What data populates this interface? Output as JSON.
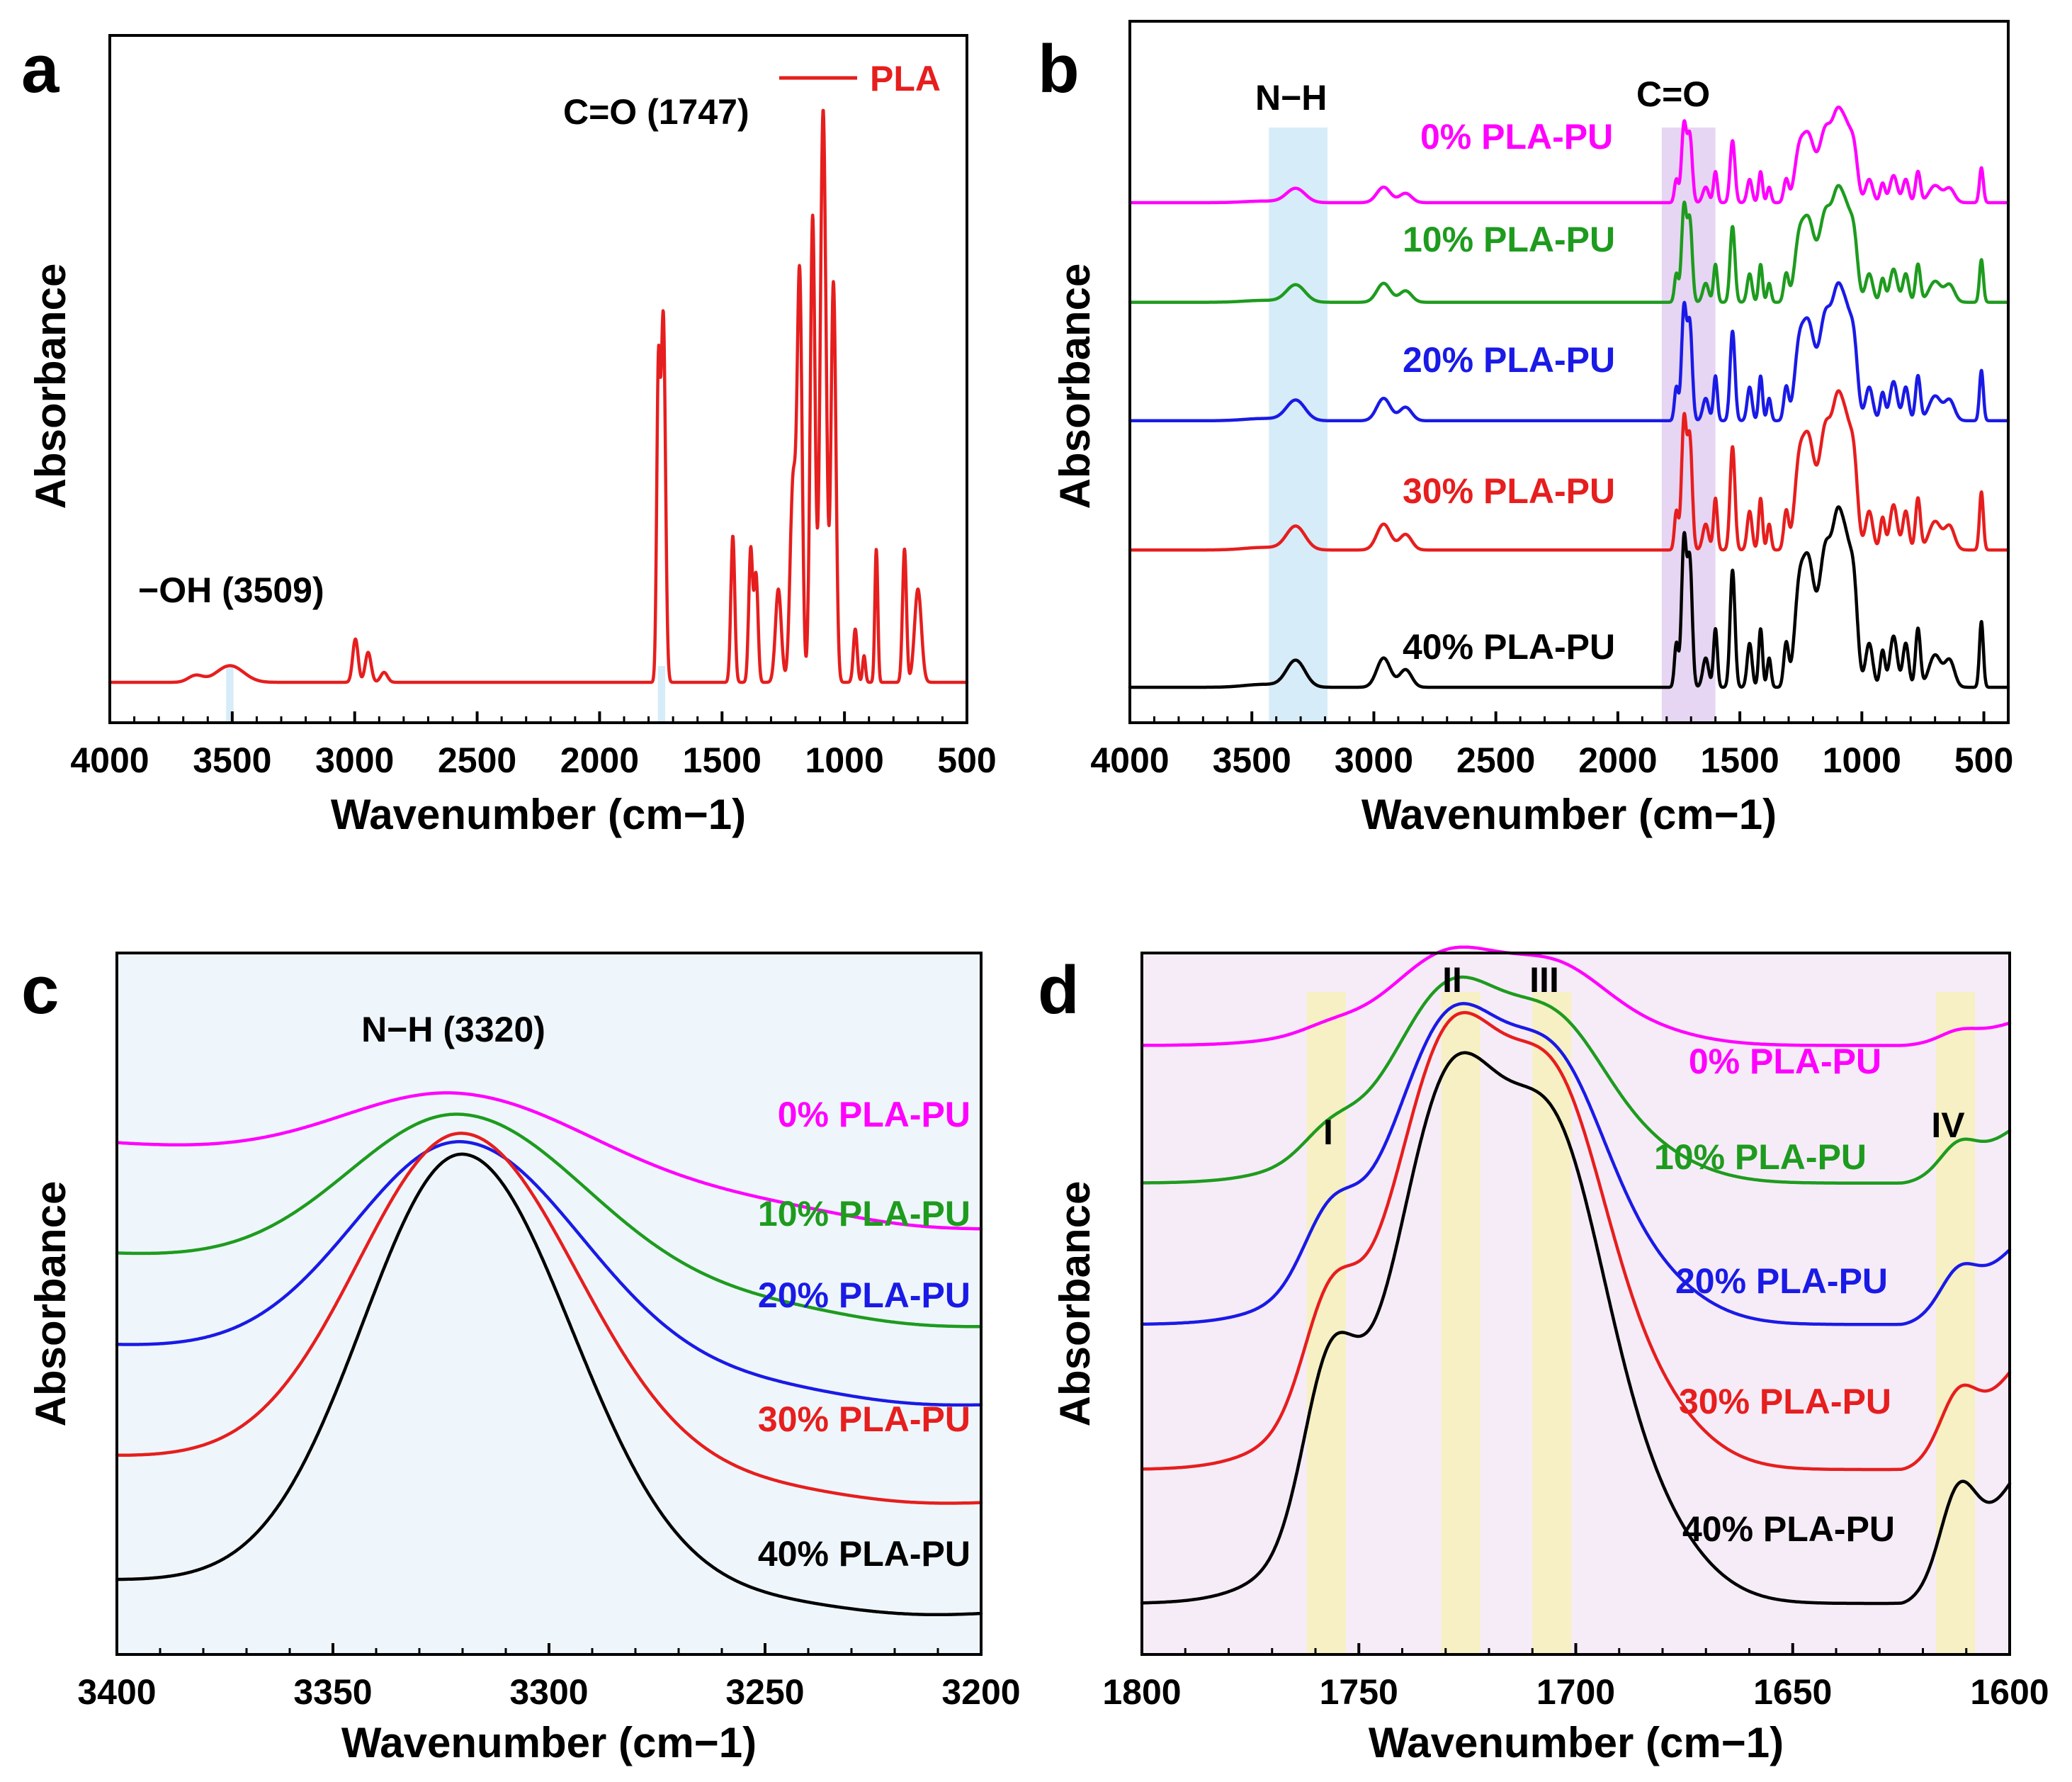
{
  "colors": {
    "0%": "#ff00ff",
    "10%": "#1e9b1e",
    "20%": "#1a1ae6",
    "30%": "#e61e1e",
    "40%": "#000000",
    "PLA": "#e61e1e",
    "nh_band": "#d6ecf8",
    "co_band": "#e6d6f3",
    "yellow_band": "#f6f0c4",
    "panel_c_bg": "#eef6fb",
    "panel_d_bg": "#f6ecf8"
  },
  "chart_data": [
    {
      "panel": "a",
      "type": "line",
      "xlabel": "Wavenumber (cm−1)",
      "ylabel": "Absorbance",
      "xlim": [
        4000,
        500
      ],
      "xticks": [
        4000,
        3500,
        3000,
        2500,
        2000,
        1500,
        1000,
        500
      ],
      "tick_labels": [
        "4000",
        "3500",
        "3000",
        "2500",
        "2000",
        "1500",
        "1000",
        "500"
      ],
      "legend": {
        "entry": "PLA",
        "position": "top-right"
      },
      "annotations": [
        {
          "text": "−OH (3509)",
          "x": 3509
        },
        {
          "text": "C=O (1747)",
          "x": 1747
        }
      ],
      "bands": [
        {
          "from": 3525,
          "to": 3495,
          "color": "nh_band"
        },
        {
          "from": 1762,
          "to": 1732,
          "color": "nh_band"
        }
      ],
      "series": [
        {
          "name": "PLA",
          "color_key": "PLA",
          "baseline": 0.05,
          "peaks": [
            [
              3509,
              0.025,
              55
            ],
            [
              3650,
              0.01,
              30
            ],
            [
              2997,
              0.065,
              11
            ],
            [
              2945,
              0.045,
              12
            ],
            [
              2880,
              0.015,
              14
            ],
            [
              1760,
              0.45,
              7
            ],
            [
              1740,
              0.55,
              9
            ],
            [
              1456,
              0.22,
              8
            ],
            [
              1383,
              0.2,
              8
            ],
            [
              1361,
              0.16,
              8
            ],
            [
              1270,
              0.14,
              12
            ],
            [
              1210,
              0.3,
              12
            ],
            [
              1183,
              0.6,
              10
            ],
            [
              1130,
              0.7,
              10
            ],
            [
              1087,
              0.86,
              12
            ],
            [
              1045,
              0.6,
              10
            ],
            [
              956,
              0.08,
              8
            ],
            [
              920,
              0.04,
              6
            ],
            [
              870,
              0.2,
              6
            ],
            [
              755,
              0.2,
              8
            ],
            [
              700,
              0.14,
              14
            ]
          ]
        }
      ]
    },
    {
      "panel": "b",
      "type": "line",
      "xlabel": "Wavenumber (cm−1)",
      "ylabel": "Absorbance",
      "xlim": [
        4000,
        400
      ],
      "xticks": [
        4000,
        3500,
        3000,
        2500,
        2000,
        1500,
        1000,
        500
      ],
      "tick_labels": [
        "4000",
        "3500",
        "3000",
        "2500",
        "2000",
        "1500",
        "1000",
        "500"
      ],
      "annotations": [
        {
          "text": "N−H",
          "x": 3320
        },
        {
          "text": "C=O",
          "x": 1730
        }
      ],
      "bands": [
        {
          "from": 3430,
          "to": 3190,
          "color": "nh_band"
        },
        {
          "from": 1820,
          "to": 1600,
          "color": "co_band"
        }
      ],
      "series": [
        {
          "name": "0% PLA-PU",
          "color_key": "0%",
          "offset": 0.9,
          "scale": 0.045
        },
        {
          "name": "10% PLA-PU",
          "color_key": "10%",
          "offset": 0.715,
          "scale": 0.055
        },
        {
          "name": "20% PLA-PU",
          "color_key": "20%",
          "offset": 0.495,
          "scale": 0.065
        },
        {
          "name": "30% PLA-PU",
          "color_key": "30%",
          "offset": 0.255,
          "scale": 0.075
        },
        {
          "name": "40% PLA-PU",
          "color_key": "40%",
          "offset": 0.0,
          "scale": 0.085
        }
      ],
      "peaks": [
        [
          3320,
          0.18,
          38
        ],
        [
          3450,
          0.02,
          80
        ],
        [
          2960,
          0.2,
          28
        ],
        [
          2870,
          0.12,
          25
        ],
        [
          1760,
          0.3,
          8
        ],
        [
          1729,
          1.0,
          10
        ],
        [
          1705,
          0.85,
          10
        ],
        [
          1640,
          0.2,
          12
        ],
        [
          1600,
          0.4,
          8
        ],
        [
          1530,
          0.8,
          10
        ],
        [
          1460,
          0.3,
          10
        ],
        [
          1415,
          0.4,
          8
        ],
        [
          1380,
          0.2,
          8
        ],
        [
          1310,
          0.3,
          10
        ],
        [
          1260,
          0.5,
          18
        ],
        [
          1220,
          0.85,
          25
        ],
        [
          1150,
          0.9,
          25
        ],
        [
          1100,
          0.95,
          22
        ],
        [
          1060,
          0.8,
          22
        ],
        [
          1030,
          0.45,
          15
        ],
        [
          970,
          0.3,
          15
        ],
        [
          915,
          0.25,
          10
        ],
        [
          870,
          0.35,
          15
        ],
        [
          820,
          0.3,
          12
        ],
        [
          770,
          0.4,
          10
        ],
        [
          700,
          0.22,
          25
        ],
        [
          640,
          0.18,
          20
        ],
        [
          510,
          0.45,
          8
        ]
      ]
    },
    {
      "panel": "c",
      "type": "line",
      "xlabel": "Wavenumber (cm−1)",
      "ylabel": "Absorbance",
      "xlim": [
        3400,
        3200
      ],
      "xticks": [
        3400,
        3350,
        3300,
        3250,
        3200
      ],
      "tick_labels": [
        "3400",
        "3350",
        "3300",
        "3250",
        "3200"
      ],
      "annotations": [
        {
          "text": "N−H (3320)",
          "x": 3320
        }
      ],
      "series": [
        {
          "name": "0% PLA-PU",
          "color_key": "0%",
          "base": 0.62,
          "amp": 0.125,
          "sigma": 26,
          "slope": 0.0006
        },
        {
          "name": "10% PLA-PU",
          "color_key": "10%",
          "base": 0.47,
          "amp": 0.255,
          "sigma": 25,
          "slope": 0.0005
        },
        {
          "name": "20% PLA-PU",
          "color_key": "20%",
          "base": 0.35,
          "amp": 0.345,
          "sigma": 24,
          "slope": 0.0004
        },
        {
          "name": "30% PLA-PU",
          "color_key": "30%",
          "base": 0.2,
          "amp": 0.52,
          "sigma": 23,
          "slope": 0.0003
        },
        {
          "name": "40% PLA-PU",
          "color_key": "40%",
          "base": 0.03,
          "amp": 0.67,
          "sigma": 22,
          "slope": 0.0002
        }
      ]
    },
    {
      "panel": "d",
      "type": "line",
      "xlabel": "Wavenumber (cm−1)",
      "ylabel": "Absorbance",
      "xlim": [
        1800,
        1600
      ],
      "xticks": [
        1800,
        1750,
        1700,
        1650,
        1600
      ],
      "tick_labels": [
        "1800",
        "1750",
        "1700",
        "1650",
        "1600"
      ],
      "annotations": [
        {
          "text": "I",
          "x": 1757
        },
        {
          "text": "II",
          "x": 1727
        },
        {
          "text": "III",
          "x": 1706
        },
        {
          "text": "IV",
          "x": 1612
        }
      ],
      "bands": [
        {
          "from": 1762,
          "to": 1753,
          "color": "yellow_band"
        },
        {
          "from": 1731,
          "to": 1722,
          "color": "yellow_band"
        },
        {
          "from": 1710,
          "to": 1701,
          "color": "yellow_band"
        },
        {
          "from": 1617,
          "to": 1608,
          "color": "yellow_band"
        }
      ],
      "series": [
        {
          "name": "0% PLA-PU",
          "color_key": "0%",
          "base": 0.79,
          "p1": 0.008,
          "p2": 0.095,
          "p3": 0.08,
          "p4": 0.01,
          "tail": 0.03
        },
        {
          "name": "10% PLA-PU",
          "color_key": "10%",
          "base": 0.605,
          "p1": 0.03,
          "p2": 0.2,
          "p3": 0.16,
          "p4": 0.03,
          "tail": 0.07
        },
        {
          "name": "20% PLA-PU",
          "color_key": "20%",
          "base": 0.415,
          "p1": 0.08,
          "p2": 0.31,
          "p3": 0.26,
          "p4": 0.04,
          "tail": 0.1
        },
        {
          "name": "30% PLA-PU",
          "color_key": "30%",
          "base": 0.22,
          "p1": 0.13,
          "p2": 0.44,
          "p3": 0.38,
          "p4": 0.06,
          "tail": 0.13
        },
        {
          "name": "40% PLA-PU",
          "color_key": "40%",
          "base": 0.04,
          "p1": 0.2,
          "p2": 0.53,
          "p3": 0.46,
          "p4": 0.1,
          "tail": 0.16
        }
      ]
    }
  ]
}
